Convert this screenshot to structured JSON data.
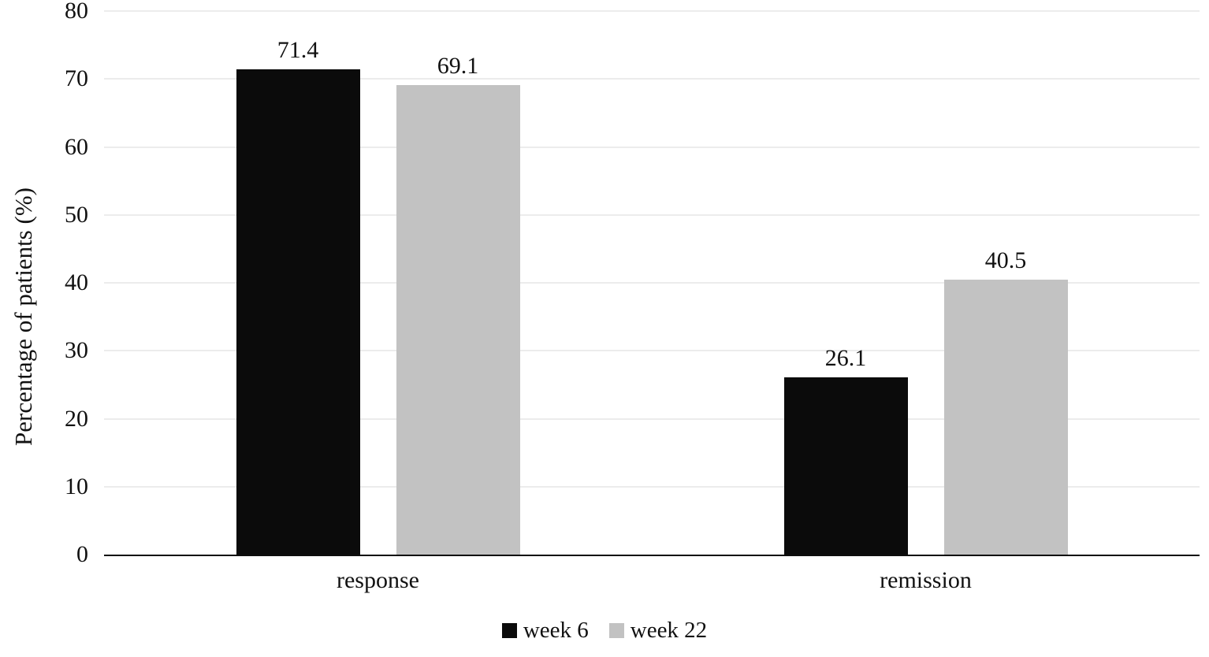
{
  "chart_data": {
    "type": "bar",
    "title": "",
    "categories": [
      "response",
      "remission"
    ],
    "series": [
      {
        "name": "week 6",
        "color": "#0b0b0b",
        "values": [
          71.4,
          26.1
        ]
      },
      {
        "name": "week 22",
        "color": "#c2c2c2",
        "values": [
          69.1,
          40.5
        ]
      }
    ],
    "xlabel": "",
    "ylabel": "Percentage of patients (%)",
    "ylim": [
      0,
      80
    ],
    "yticks": [
      0,
      10,
      20,
      30,
      40,
      50,
      60,
      70,
      80
    ],
    "grid": "horizontal",
    "gridline_color": "#d9d9d9",
    "axis_color": "#0d0d0d",
    "legend_position": "bottom"
  }
}
